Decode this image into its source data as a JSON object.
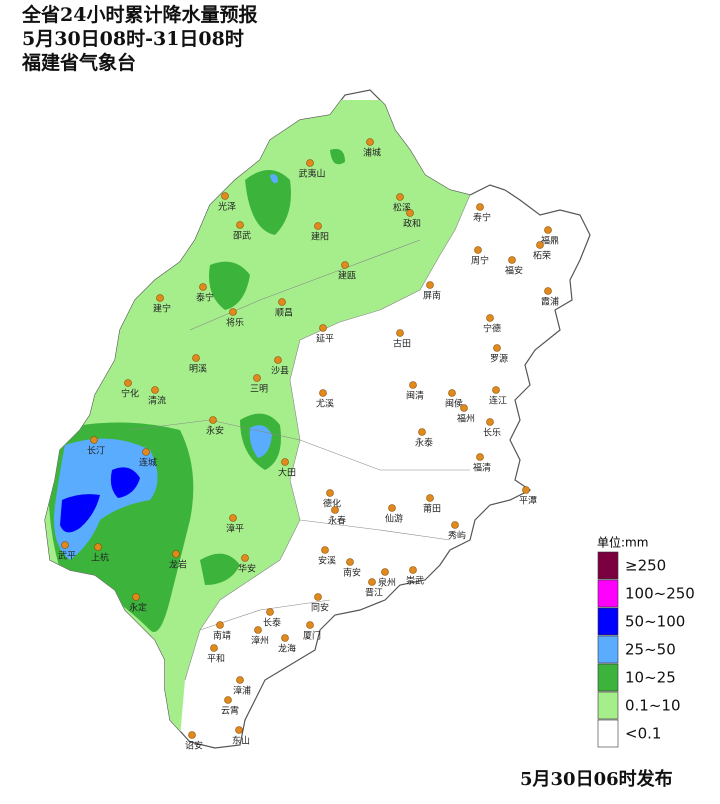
{
  "header": {
    "title": "全省24小时累计降水量预报",
    "period": "5月30日08时-31日08时",
    "issuer": "福建省气象台"
  },
  "cities": [
    "浦城",
    "武夷山",
    "光泽",
    "松溪",
    "邵武",
    "建阳",
    "政和",
    "寿宁",
    "福鼎",
    "周宁",
    "柘荣",
    "福安",
    "建瓯",
    "泰宁",
    "建宁",
    "将乐",
    "顺昌",
    "屏南",
    "霞浦",
    "宁德",
    "延平",
    "古田",
    "罗源",
    "明溪",
    "沙县",
    "三明",
    "宁化",
    "清流",
    "尤溪",
    "闽清",
    "闽侯",
    "连江",
    "福州",
    "永安",
    "长乐",
    "永泰",
    "长汀",
    "连城",
    "大田",
    "福清",
    "平潭",
    "德化",
    "永春",
    "仙游",
    "莆田",
    "秀屿",
    "漳平",
    "武平",
    "上杭",
    "龙岩",
    "华安",
    "安溪",
    "南安",
    "泉州",
    "晋江",
    "崇武",
    "永定",
    "同安",
    "长泰",
    "南靖",
    "漳州",
    "厦门",
    "龙海",
    "平和",
    "漳浦",
    "云霄",
    "诏安",
    "东山"
  ],
  "legend": {
    "title": "单位:mm",
    "items": [
      {
        "label": "≥250",
        "color": "#7b0040"
      },
      {
        "label": "100~250",
        "color": "#ff00ff"
      },
      {
        "label": "50~100",
        "color": "#0000ff"
      },
      {
        "label": "25~50",
        "color": "#5aacff"
      },
      {
        "label": "10~25",
        "color": "#3cb43c"
      },
      {
        "label": "0.1~10",
        "color": "#a6ee8c"
      },
      {
        "label": "<0.1",
        "color": "#ffffff"
      }
    ]
  },
  "footer": "5月30日06时发布"
}
